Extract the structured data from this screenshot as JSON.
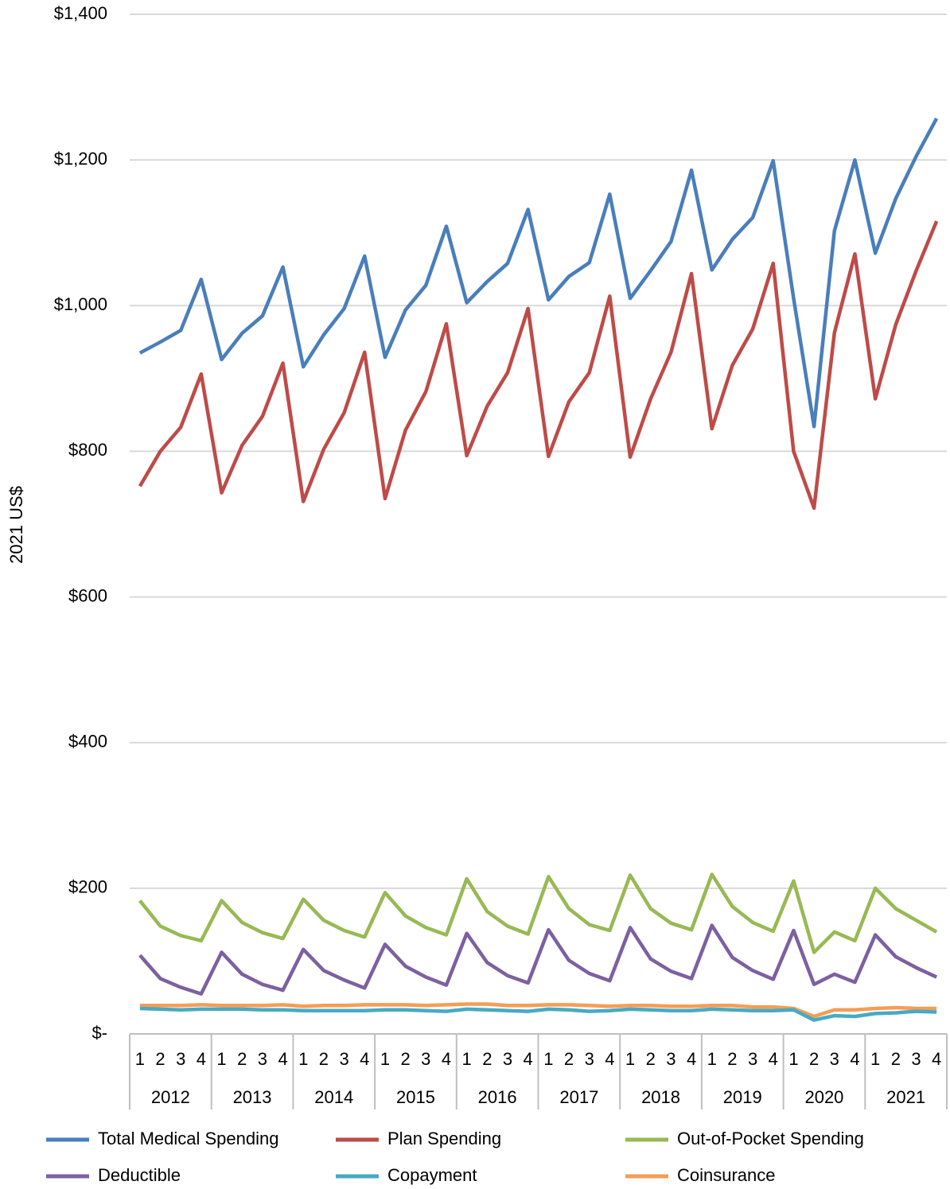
{
  "chart_data": {
    "type": "line",
    "y_label": "2021 US$",
    "categories": [
      "1",
      "2",
      "3",
      "4",
      "1",
      "2",
      "3",
      "4",
      "1",
      "2",
      "3",
      "4",
      "1",
      "2",
      "3",
      "4",
      "1",
      "2",
      "3",
      "4",
      "1",
      "2",
      "3",
      "4",
      "1",
      "2",
      "3",
      "4",
      "1",
      "2",
      "3",
      "4",
      "1",
      "2",
      "3",
      "4",
      "1",
      "2",
      "3",
      "4"
    ],
    "groups": [
      "2012",
      "2013",
      "2014",
      "2015",
      "2016",
      "2017",
      "2018",
      "2019",
      "2020",
      "2021"
    ],
    "ylim": [
      0,
      1400
    ],
    "yticks": [
      {
        "value": 0,
        "label": "$-"
      },
      {
        "value": 200,
        "label": "$200"
      },
      {
        "value": 400,
        "label": "$400"
      },
      {
        "value": 600,
        "label": "$600"
      },
      {
        "value": 800,
        "label": "$800"
      },
      {
        "value": 1000,
        "label": "$1,000"
      },
      {
        "value": 1200,
        "label": "$1,200"
      },
      {
        "value": 1400,
        "label": "$1,400"
      }
    ],
    "grid": true,
    "legend": "bottom",
    "series": [
      {
        "name": "Total Medical Spending",
        "color": "#4a7ebb",
        "values": [
          935,
          950,
          966,
          1036,
          926,
          962,
          986,
          1053,
          916,
          960,
          996,
          1068,
          929,
          994,
          1028,
          1109,
          1004,
          1033,
          1058,
          1132,
          1008,
          1040,
          1059,
          1153,
          1010,
          1048,
          1088,
          1186,
          1049,
          1091,
          1121,
          1199,
          1010,
          834,
          1103,
          1200,
          1072,
          1147,
          1205,
          1257
        ]
      },
      {
        "name": "Plan Spending",
        "color": "#be4b48",
        "values": [
          752,
          800,
          833,
          906,
          743,
          808,
          848,
          921,
          731,
          803,
          853,
          936,
          735,
          829,
          882,
          975,
          794,
          862,
          908,
          996,
          793,
          868,
          908,
          1013,
          792,
          872,
          936,
          1044,
          831,
          918,
          968,
          1058,
          800,
          722,
          963,
          1071,
          872,
          974,
          1048,
          1116
        ]
      },
      {
        "name": "Out-of-Pocket Spending",
        "color": "#98b954",
        "values": [
          183,
          148,
          135,
          128,
          183,
          153,
          139,
          131,
          185,
          156,
          142,
          133,
          194,
          162,
          146,
          136,
          213,
          168,
          148,
          137,
          216,
          172,
          150,
          142,
          218,
          172,
          152,
          143,
          219,
          175,
          153,
          141,
          210,
          112,
          140,
          128,
          200,
          172,
          156,
          140
        ]
      },
      {
        "name": "Deductible",
        "color": "#7d60a0",
        "values": [
          108,
          76,
          64,
          55,
          112,
          82,
          68,
          60,
          116,
          87,
          74,
          63,
          123,
          93,
          78,
          67,
          138,
          98,
          80,
          70,
          143,
          101,
          83,
          73,
          146,
          103,
          86,
          76,
          149,
          105,
          87,
          75,
          142,
          68,
          82,
          71,
          136,
          106,
          91,
          78
        ]
      },
      {
        "name": "Copayment",
        "color": "#46aac5",
        "values": [
          35,
          34,
          33,
          34,
          34,
          34,
          33,
          33,
          32,
          32,
          32,
          32,
          33,
          33,
          32,
          31,
          34,
          33,
          32,
          31,
          34,
          33,
          31,
          32,
          34,
          33,
          32,
          32,
          34,
          33,
          32,
          32,
          33,
          19,
          25,
          24,
          28,
          29,
          31,
          30
        ]
      },
      {
        "name": "Coinsurance",
        "color": "#f59d56",
        "values": [
          39,
          39,
          39,
          40,
          39,
          39,
          39,
          40,
          38,
          39,
          39,
          40,
          40,
          40,
          39,
          40,
          41,
          41,
          39,
          39,
          40,
          40,
          39,
          38,
          39,
          39,
          38,
          38,
          39,
          39,
          37,
          37,
          35,
          24,
          33,
          33,
          35,
          36,
          35,
          35
        ]
      }
    ]
  }
}
